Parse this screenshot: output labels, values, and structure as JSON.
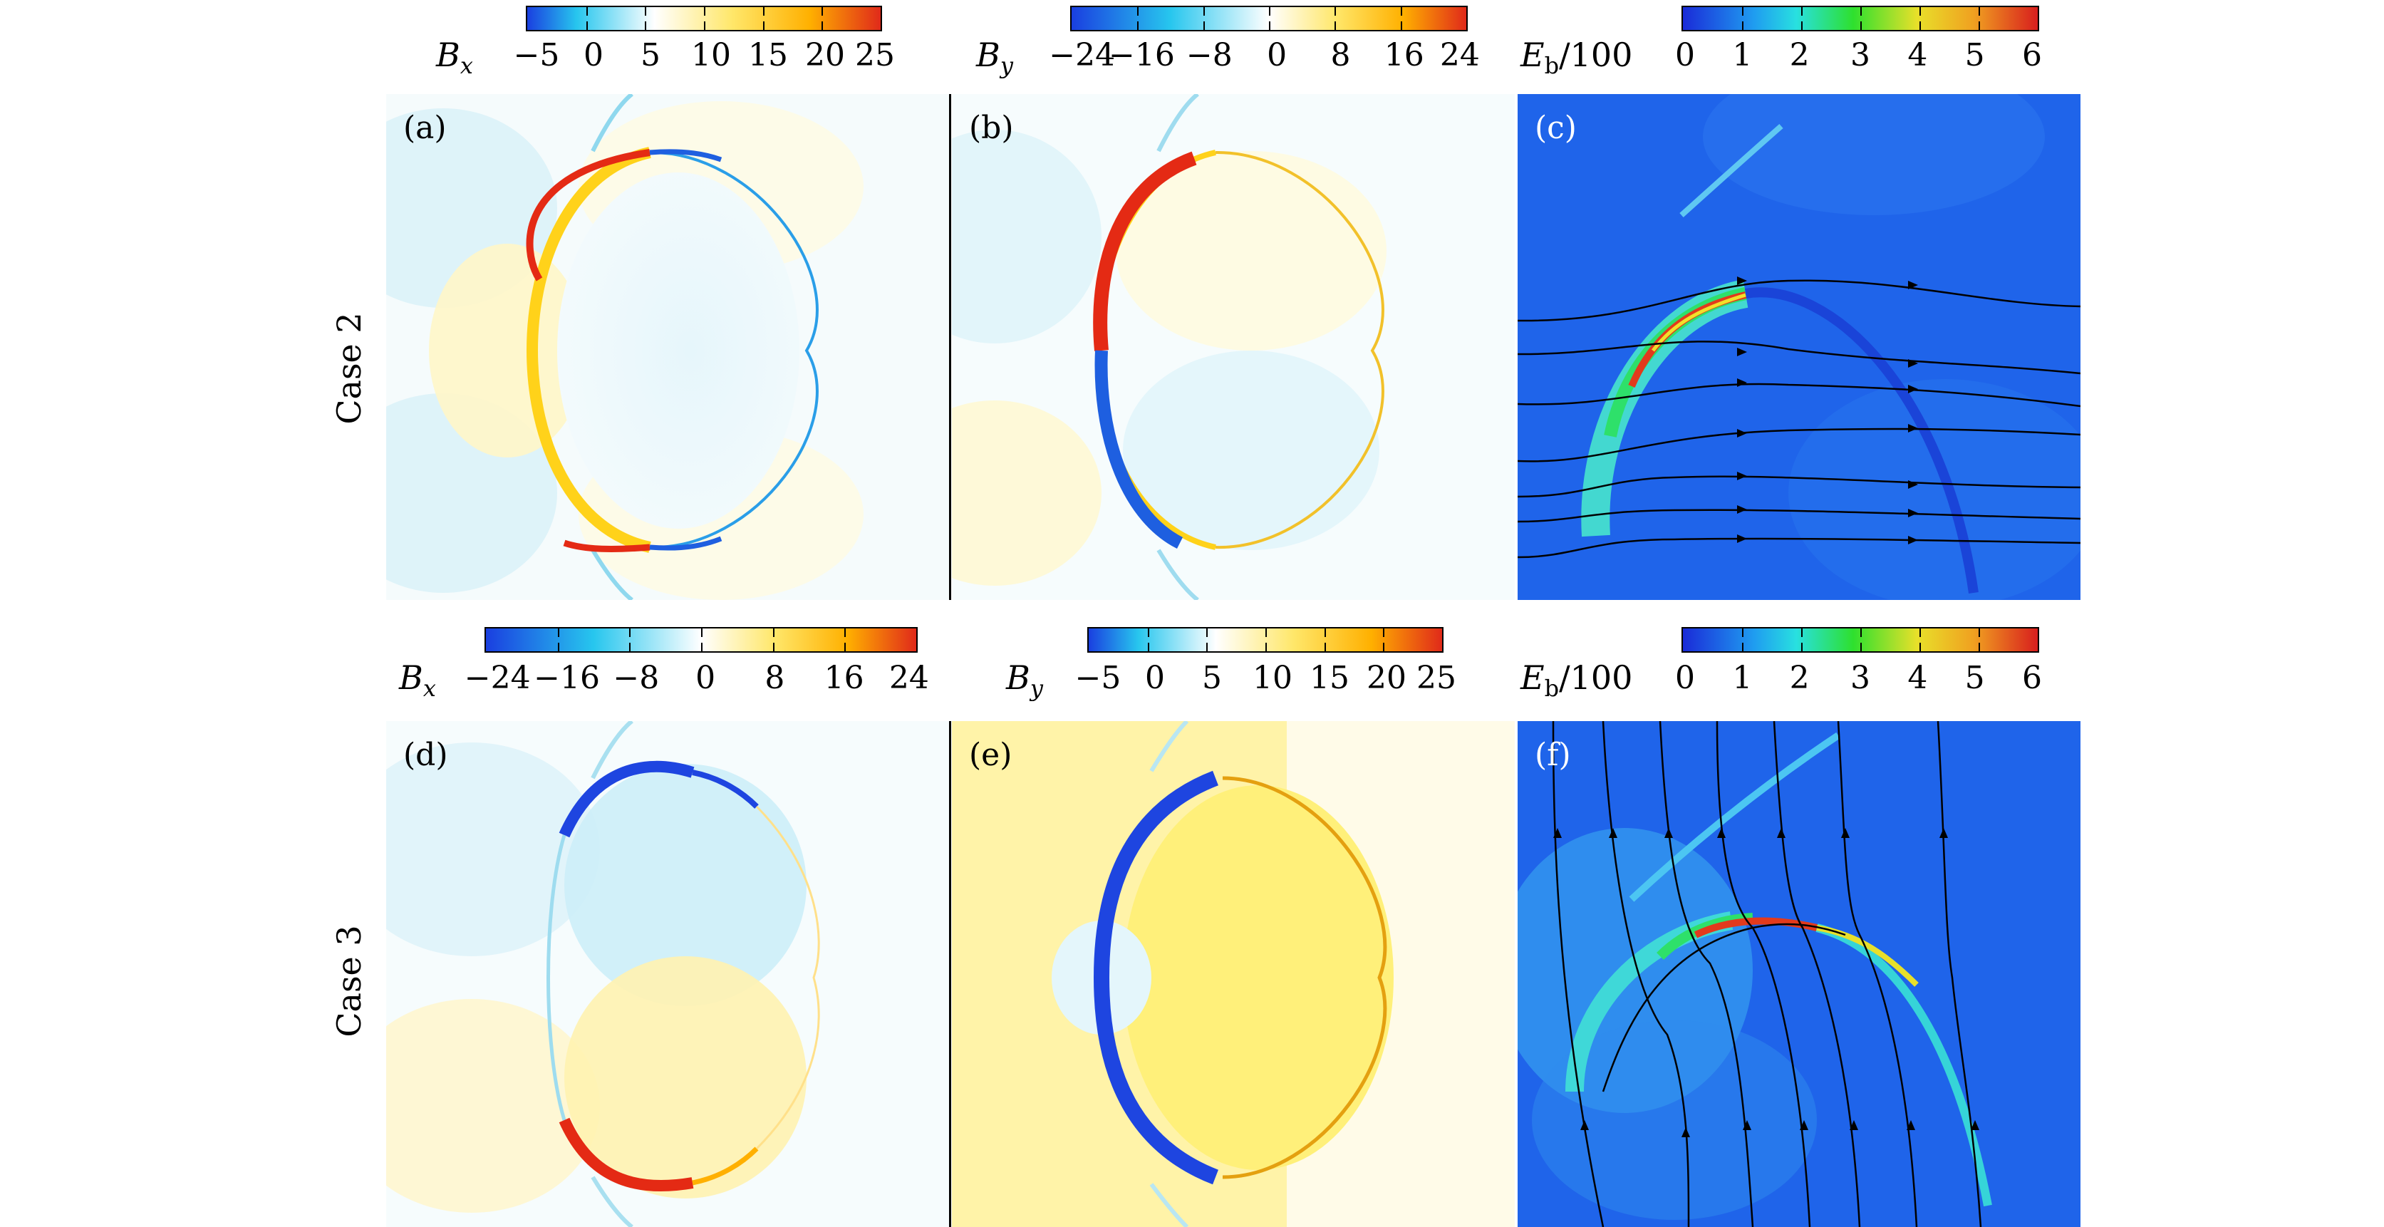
{
  "rows": [
    {
      "label": "Case 2",
      "colorbars": [
        {
          "var": "B",
          "sub": "x",
          "suffix": "",
          "ticks": [
            "−5",
            "0",
            "5",
            "10",
            "15",
            "20",
            "25"
          ],
          "gradient": "diverging"
        },
        {
          "var": "B",
          "sub": "y",
          "suffix": "",
          "ticks": [
            "−24",
            "−16",
            "−8",
            "0",
            "8",
            "16",
            "24"
          ],
          "gradient": "diverging"
        },
        {
          "var": "E",
          "sub": "b",
          "suffix": "/100",
          "ticks": [
            "0",
            "1",
            "2",
            "3",
            "4",
            "5",
            "6"
          ],
          "gradient": "jet"
        }
      ],
      "panels": [
        "(a)",
        "(b)",
        "(c)"
      ]
    },
    {
      "label": "Case 3",
      "colorbars": [
        {
          "var": "B",
          "sub": "x",
          "suffix": "",
          "ticks": [
            "−24",
            "−16",
            "−8",
            "0",
            "8",
            "16",
            "24"
          ],
          "gradient": "diverging"
        },
        {
          "var": "B",
          "sub": "y",
          "suffix": "",
          "ticks": [
            "−5",
            "0",
            "5",
            "10",
            "15",
            "20",
            "25"
          ],
          "gradient": "diverging"
        },
        {
          "var": "E",
          "sub": "b",
          "suffix": "/100",
          "ticks": [
            "0",
            "1",
            "2",
            "3",
            "4",
            "5",
            "6"
          ],
          "gradient": "jet"
        }
      ],
      "panels": [
        "(d)",
        "(e)",
        "(f)"
      ]
    }
  ],
  "colors": {
    "diverging": [
      "#1a3fe0",
      "#27c6ee",
      "#ffffff",
      "#ffe76a",
      "#ffb000",
      "#e02a1a"
    ],
    "jet": [
      "#1a2bd8",
      "#1f9cf0",
      "#28e0e0",
      "#2ee02e",
      "#e8e02a",
      "#f0a020",
      "#d81e1e"
    ]
  }
}
